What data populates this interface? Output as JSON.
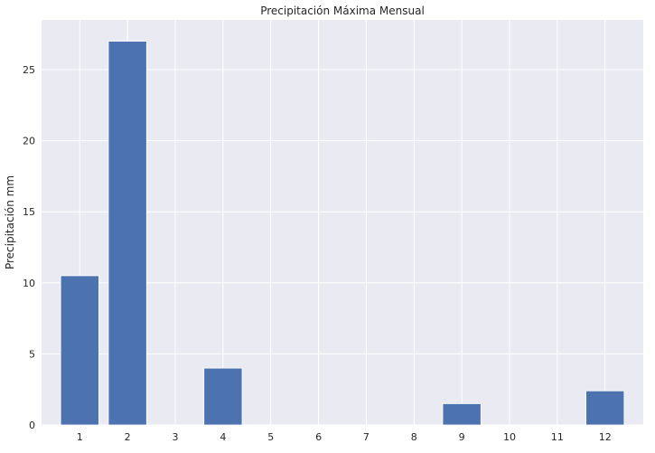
{
  "chart_data": {
    "type": "bar",
    "title": "Precipitación Máxima Mensual",
    "xlabel": "",
    "ylabel": "Precipitación mm",
    "categories": [
      "1",
      "2",
      "3",
      "4",
      "5",
      "6",
      "7",
      "8",
      "9",
      "10",
      "11",
      "12"
    ],
    "x": [
      1,
      2,
      3,
      4,
      5,
      6,
      7,
      8,
      9,
      10,
      11,
      12
    ],
    "values": [
      10.5,
      27.0,
      0,
      4.0,
      0,
      0,
      0,
      0,
      1.5,
      0,
      0,
      2.4
    ],
    "xlim": [
      0.2,
      12.8
    ],
    "ylim": [
      0,
      28.5
    ],
    "yticks": [
      0,
      5,
      10,
      15,
      20,
      25
    ],
    "grid": true,
    "legend": "none",
    "colors": {
      "bar": "#4c72b0",
      "plot_background": "#eaeaf2",
      "grid": "#ffffff",
      "text": "#262626"
    }
  }
}
